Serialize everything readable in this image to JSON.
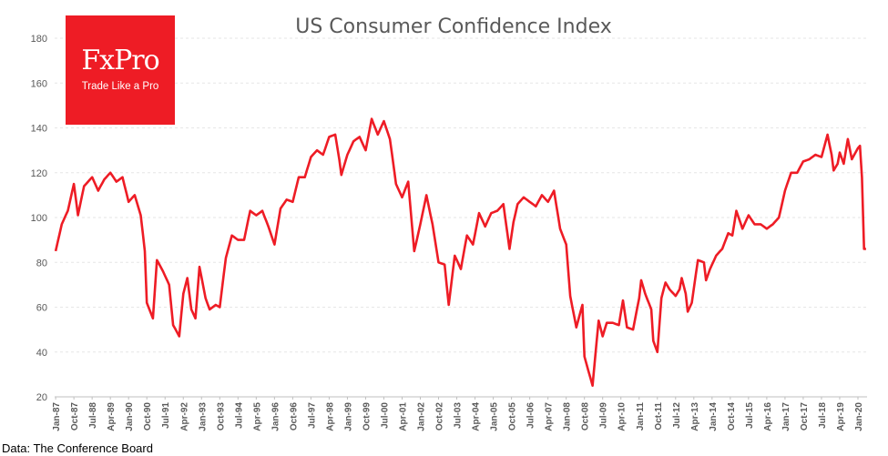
{
  "brand": {
    "name": "FxPro",
    "tagline": "Trade Like a Pro"
  },
  "source_note": "Data: The Conference Board",
  "chart_data": {
    "type": "line",
    "title": "US Consumer Confidence Index",
    "xlabel": "",
    "ylabel": "",
    "ylim": [
      20,
      180
    ],
    "yticks": [
      20,
      40,
      60,
      80,
      100,
      120,
      140,
      160,
      180
    ],
    "grid": true,
    "line_color": "#ee1c25",
    "x_tick_labels": [
      "Jan-87",
      "Oct-87",
      "Jul-88",
      "Apr-89",
      "Jan-90",
      "Oct-90",
      "Jul-91",
      "Apr-92",
      "Jan-93",
      "Oct-93",
      "Jul-94",
      "Apr-95",
      "Jan-96",
      "Oct-96",
      "Jul-97",
      "Apr-98",
      "Jan-99",
      "Oct-99",
      "Jul-00",
      "Apr-01",
      "Jan-02",
      "Oct-02",
      "Jul-03",
      "Apr-04",
      "Jan-05",
      "Oct-05",
      "Jul-06",
      "Apr-07",
      "Jan-08",
      "Oct-08",
      "Jul-09",
      "Apr-10",
      "Jan-11",
      "Oct-11",
      "Jul-12",
      "Apr-13",
      "Jan-14",
      "Oct-14",
      "Jul-15",
      "Apr-16",
      "Jan-17",
      "Oct-17",
      "Jul-18",
      "Apr-19",
      "Jan-20"
    ],
    "series": [
      {
        "x_start": "Jan-87",
        "frequency": "monthly",
        "keyframes": [
          [
            "Jan-87",
            85
          ],
          [
            "Apr-87",
            97
          ],
          [
            "Jul-87",
            103
          ],
          [
            "Oct-87",
            115
          ],
          [
            "Dec-87",
            101
          ],
          [
            "Mar-88",
            114
          ],
          [
            "Jul-88",
            118
          ],
          [
            "Oct-88",
            112
          ],
          [
            "Jan-89",
            117
          ],
          [
            "Apr-89",
            120
          ],
          [
            "Jul-89",
            116
          ],
          [
            "Oct-89",
            118
          ],
          [
            "Jan-90",
            107
          ],
          [
            "Apr-90",
            110
          ],
          [
            "Jul-90",
            101
          ],
          [
            "Sep-90",
            85
          ],
          [
            "Oct-90",
            62
          ],
          [
            "Jan-91",
            55
          ],
          [
            "Mar-91",
            81
          ],
          [
            "Jun-91",
            76
          ],
          [
            "Sep-91",
            70
          ],
          [
            "Nov-91",
            52
          ],
          [
            "Feb-92",
            47
          ],
          [
            "Apr-92",
            66
          ],
          [
            "Jun-92",
            73
          ],
          [
            "Aug-92",
            59
          ],
          [
            "Oct-92",
            55
          ],
          [
            "Dec-92",
            78
          ],
          [
            "Mar-93",
            64
          ],
          [
            "May-93",
            59
          ],
          [
            "Aug-93",
            61
          ],
          [
            "Oct-93",
            60
          ],
          [
            "Jan-94",
            82
          ],
          [
            "Apr-94",
            92
          ],
          [
            "Jul-94",
            90
          ],
          [
            "Oct-94",
            90
          ],
          [
            "Jan-95",
            103
          ],
          [
            "Apr-95",
            101
          ],
          [
            "Jul-95",
            103
          ],
          [
            "Oct-95",
            96
          ],
          [
            "Jan-96",
            88
          ],
          [
            "Apr-96",
            104
          ],
          [
            "Jul-96",
            108
          ],
          [
            "Oct-96",
            107
          ],
          [
            "Jan-97",
            118
          ],
          [
            "Apr-97",
            118
          ],
          [
            "Jul-97",
            127
          ],
          [
            "Oct-97",
            130
          ],
          [
            "Jan-98",
            128
          ],
          [
            "Apr-98",
            136
          ],
          [
            "Jul-98",
            137
          ],
          [
            "Sep-98",
            126
          ],
          [
            "Oct-98",
            119
          ],
          [
            "Jan-99",
            128
          ],
          [
            "Apr-99",
            134
          ],
          [
            "Jul-99",
            136
          ],
          [
            "Oct-99",
            130
          ],
          [
            "Jan-00",
            144
          ],
          [
            "Apr-00",
            137
          ],
          [
            "Jul-00",
            143
          ],
          [
            "Oct-00",
            135
          ],
          [
            "Jan-01",
            115
          ],
          [
            "Apr-01",
            109
          ],
          [
            "Jul-01",
            116
          ],
          [
            "Oct-01",
            85
          ],
          [
            "Jan-02",
            97
          ],
          [
            "Apr-02",
            110
          ],
          [
            "Jul-02",
            97
          ],
          [
            "Oct-02",
            80
          ],
          [
            "Jan-03",
            79
          ],
          [
            "Mar-03",
            61
          ],
          [
            "Jun-03",
            83
          ],
          [
            "Sep-03",
            77
          ],
          [
            "Dec-03",
            92
          ],
          [
            "Mar-04",
            88
          ],
          [
            "Jun-04",
            102
          ],
          [
            "Sep-04",
            96
          ],
          [
            "Dec-04",
            102
          ],
          [
            "Mar-05",
            103
          ],
          [
            "Jun-05",
            106
          ],
          [
            "Sep-05",
            86
          ],
          [
            "Nov-05",
            98
          ],
          [
            "Jan-06",
            106
          ],
          [
            "Apr-06",
            109
          ],
          [
            "Jul-06",
            107
          ],
          [
            "Oct-06",
            105
          ],
          [
            "Jan-07",
            110
          ],
          [
            "Apr-07",
            107
          ],
          [
            "Jul-07",
            112
          ],
          [
            "Oct-07",
            95
          ],
          [
            "Jan-08",
            88
          ],
          [
            "Mar-08",
            65
          ],
          [
            "Jun-08",
            51
          ],
          [
            "Sep-08",
            61
          ],
          [
            "Oct-08",
            38
          ],
          [
            "Feb-09",
            25
          ],
          [
            "May-09",
            54
          ],
          [
            "Jul-09",
            47
          ],
          [
            "Sep-09",
            53
          ],
          [
            "Dec-09",
            53
          ],
          [
            "Mar-10",
            52
          ],
          [
            "May-10",
            63
          ],
          [
            "Jul-10",
            51
          ],
          [
            "Oct-10",
            50
          ],
          [
            "Jan-11",
            64
          ],
          [
            "Feb-11",
            72
          ],
          [
            "Apr-11",
            66
          ],
          [
            "Jul-11",
            59
          ],
          [
            "Aug-11",
            45
          ],
          [
            "Oct-11",
            40
          ],
          [
            "Dec-11",
            64
          ],
          [
            "Feb-12",
            71
          ],
          [
            "Apr-12",
            68
          ],
          [
            "Jul-12",
            65
          ],
          [
            "Sep-12",
            68
          ],
          [
            "Oct-12",
            73
          ],
          [
            "Dec-12",
            66
          ],
          [
            "Jan-13",
            58
          ],
          [
            "Mar-13",
            62
          ],
          [
            "Jun-13",
            81
          ],
          [
            "Sep-13",
            80
          ],
          [
            "Oct-13",
            72
          ],
          [
            "Dec-13",
            77
          ],
          [
            "Mar-14",
            83
          ],
          [
            "Jun-14",
            86
          ],
          [
            "Sep-14",
            93
          ],
          [
            "Nov-14",
            92
          ],
          [
            "Jan-15",
            103
          ],
          [
            "Apr-15",
            95
          ],
          [
            "Jul-15",
            101
          ],
          [
            "Oct-15",
            97
          ],
          [
            "Jan-16",
            97
          ],
          [
            "Apr-16",
            95
          ],
          [
            "Jul-16",
            97
          ],
          [
            "Oct-16",
            100
          ],
          [
            "Jan-17",
            112
          ],
          [
            "Apr-17",
            120
          ],
          [
            "Jul-17",
            120
          ],
          [
            "Oct-17",
            125
          ],
          [
            "Jan-18",
            126
          ],
          [
            "Apr-18",
            128
          ],
          [
            "Jul-18",
            127
          ],
          [
            "Oct-18",
            137
          ],
          [
            "Dec-18",
            128
          ],
          [
            "Jan-19",
            121
          ],
          [
            "Mar-19",
            124
          ],
          [
            "Apr-19",
            129
          ],
          [
            "Jun-19",
            124
          ],
          [
            "Aug-19",
            135
          ],
          [
            "Oct-19",
            126
          ],
          [
            "Jan-20",
            131
          ],
          [
            "Feb-20",
            132
          ],
          [
            "Mar-20",
            118
          ],
          [
            "Apr-20",
            86
          ],
          [
            "May-20",
            86
          ]
        ]
      }
    ]
  }
}
